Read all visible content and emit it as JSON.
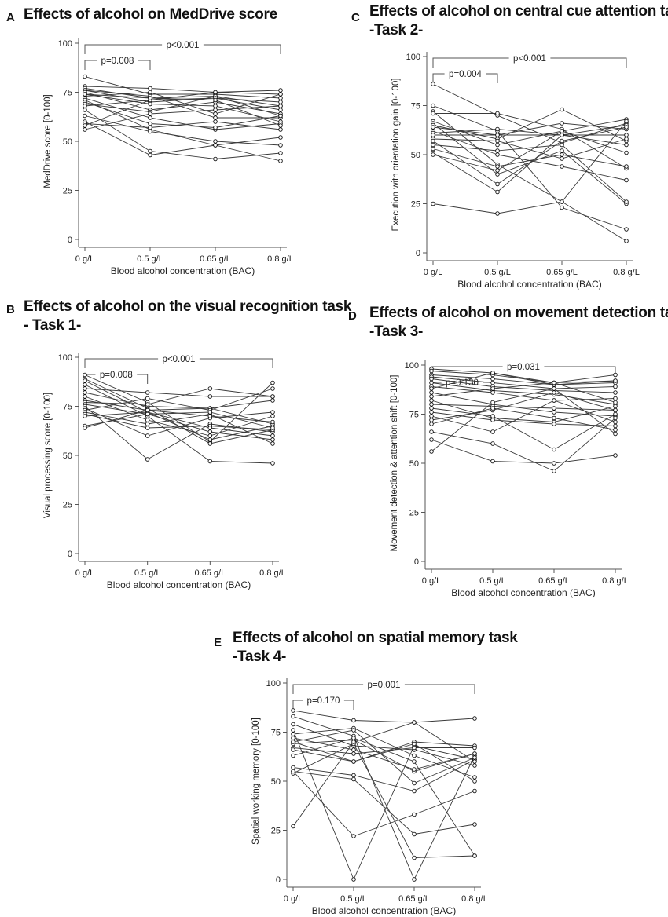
{
  "colors": {
    "line": "#3a3a3a",
    "axis": "#555555",
    "marker_fill": "#ffffff"
  },
  "chart_data": [
    {
      "type": "line",
      "id": "A",
      "panel_letter": "A",
      "title": "Effects of alcohol on MedDrive score",
      "subtitle": "",
      "xlabel": "Blood alcohol concentration (BAC)",
      "ylabel": "MedDrive score [0-100]",
      "categories": [
        "0 g/L",
        "0.5 g/L",
        "0.65 g/L",
        "0.8 g/L"
      ],
      "yticks": [
        0,
        25,
        50,
        75,
        100
      ],
      "ylim": [
        0,
        100
      ],
      "brackets": [
        {
          "from": 0,
          "to": 1,
          "label": "p=0.008"
        },
        {
          "from": 0,
          "to": 3,
          "label": "p<0.001"
        }
      ],
      "series": [
        [
          83,
          74,
          74,
          72
        ],
        [
          78,
          77,
          75,
          76
        ],
        [
          77,
          72,
          73,
          68
        ],
        [
          76,
          70,
          72,
          66
        ],
        [
          76,
          73,
          62,
          62
        ],
        [
          75,
          66,
          70,
          64
        ],
        [
          74,
          69,
          68,
          60
        ],
        [
          73,
          75,
          64,
          74
        ],
        [
          72,
          62,
          56,
          59
        ],
        [
          71,
          56,
          48,
          52
        ],
        [
          70,
          59,
          57,
          63
        ],
        [
          69,
          65,
          73,
          63
        ],
        [
          68,
          71,
          75,
          74
        ],
        [
          66,
          45,
          41,
          44
        ],
        [
          63,
          55,
          50,
          48
        ],
        [
          60,
          43,
          48,
          40
        ],
        [
          59,
          57,
          60,
          56
        ],
        [
          58,
          71,
          72,
          70
        ],
        [
          56,
          64,
          66,
          68
        ],
        [
          74,
          72,
          71,
          58
        ]
      ]
    },
    {
      "type": "line",
      "id": "C",
      "panel_letter": "C",
      "title": "Effects of alcohol on central cue attention task",
      "subtitle": "-Task 2-",
      "xlabel": "Blood alcohol concentration (BAC)",
      "ylabel": "Execution with orientation gain [0-100]",
      "categories": [
        "0 g/L",
        "0.5 g/L",
        "0.65 g/L",
        "0.8 g/L"
      ],
      "yticks": [
        0,
        25,
        50,
        75,
        100
      ],
      "ylim": [
        0,
        100
      ],
      "brackets": [
        {
          "from": 0,
          "to": 1,
          "label": "p=0.004"
        },
        {
          "from": 0,
          "to": 3,
          "label": "p<0.001"
        }
      ],
      "series": [
        [
          86,
          70,
          56,
          66
        ],
        [
          75,
          62,
          23,
          12
        ],
        [
          72,
          45,
          26,
          6
        ],
        [
          71,
          71,
          63,
          43
        ],
        [
          67,
          55,
          62,
          51
        ],
        [
          66,
          40,
          52,
          25
        ],
        [
          65,
          58,
          73,
          57
        ],
        [
          64,
          60,
          60,
          65
        ],
        [
          62,
          50,
          44,
          37
        ],
        [
          61,
          63,
          60,
          60
        ],
        [
          60,
          60,
          66,
          63
        ],
        [
          58,
          57,
          48,
          58
        ],
        [
          57,
          35,
          57,
          64
        ],
        [
          55,
          52,
          55,
          26
        ],
        [
          53,
          44,
          50,
          44
        ],
        [
          51,
          31,
          60,
          55
        ],
        [
          50,
          42,
          62,
          68
        ],
        [
          25,
          20,
          26,
          67
        ]
      ]
    },
    {
      "type": "line",
      "id": "B",
      "panel_letter": "B",
      "title": "Effects of alcohol on the visual recognition task",
      "subtitle": "- Task 1-",
      "xlabel": "Blood alcohol concentration (BAC)",
      "ylabel": "Visual processing score [0-100]",
      "categories": [
        "0 g/L",
        "0.5 g/L",
        "0.65 g/L",
        "0.8 g/L"
      ],
      "yticks": [
        0,
        25,
        50,
        75,
        100
      ],
      "ylim": [
        0,
        100
      ],
      "brackets": [
        {
          "from": 0,
          "to": 1,
          "label": "p=0.008"
        },
        {
          "from": 0,
          "to": 3,
          "label": "p<0.001"
        }
      ],
      "series": [
        [
          91,
          77,
          57,
          87
        ],
        [
          89,
          74,
          56,
          63
        ],
        [
          88,
          72,
          58,
          65
        ],
        [
          86,
          70,
          47,
          46
        ],
        [
          84,
          82,
          80,
          80
        ],
        [
          82,
          75,
          74,
          78
        ],
        [
          80,
          68,
          60,
          70
        ],
        [
          78,
          73,
          74,
          66
        ],
        [
          77,
          76,
          84,
          80
        ],
        [
          76,
          71,
          62,
          58
        ],
        [
          75,
          48,
          66,
          62
        ],
        [
          74,
          60,
          69,
          72
        ],
        [
          73,
          79,
          73,
          84
        ],
        [
          72,
          66,
          71,
          56
        ],
        [
          71,
          64,
          65,
          63
        ],
        [
          70,
          72,
          64,
          60
        ],
        [
          65,
          71,
          72,
          64
        ],
        [
          64,
          73,
          70,
          67
        ]
      ]
    },
    {
      "type": "line",
      "id": "D",
      "panel_letter": "D",
      "title": "Effects of alcohol on movement detection task",
      "subtitle": "-Task 3-",
      "xlabel": "Blood alcohol concentration (BAC)",
      "ylabel": "Movement detection & attention shift [0-100]",
      "categories": [
        "0 g/L",
        "0.5 g/L",
        "0.65 g/L",
        "0.8 g/L"
      ],
      "yticks": [
        0,
        25,
        50,
        75,
        100
      ],
      "ylim": [
        0,
        100
      ],
      "brackets": [
        {
          "from": 0,
          "to": 1,
          "label": "p=0.130"
        },
        {
          "from": 0,
          "to": 3,
          "label": "p=0.031"
        }
      ],
      "series": [
        [
          98,
          96,
          90,
          92
        ],
        [
          97,
          95,
          91,
          95
        ],
        [
          95,
          93,
          90,
          91
        ],
        [
          94,
          91,
          88,
          89
        ],
        [
          93,
          89,
          87,
          86
        ],
        [
          91,
          87,
          85,
          80
        ],
        [
          89,
          86,
          82,
          83
        ],
        [
          88,
          96,
          91,
          92
        ],
        [
          86,
          80,
          76,
          74
        ],
        [
          82,
          73,
          71,
          79
        ],
        [
          80,
          79,
          78,
          77
        ],
        [
          78,
          74,
          57,
          75
        ],
        [
          76,
          72,
          70,
          69
        ],
        [
          74,
          66,
          82,
          71
        ],
        [
          72,
          77,
          86,
          77
        ],
        [
          70,
          78,
          73,
          67
        ],
        [
          66,
          60,
          46,
          73
        ],
        [
          62,
          51,
          50,
          54
        ],
        [
          56,
          81,
          88,
          65
        ],
        [
          84,
          88,
          91,
          81
        ]
      ]
    },
    {
      "type": "line",
      "id": "E",
      "panel_letter": "E",
      "title": "Effects of alcohol on spatial memory task",
      "subtitle": "-Task 4-",
      "xlabel": "Blood alcohol concentration (BAC)",
      "ylabel": "Spatial working memory [0-100]",
      "categories": [
        "0 g/L",
        "0.5 g/L",
        "0.65 g/L",
        "0.8 g/L"
      ],
      "yticks": [
        0,
        25,
        50,
        75,
        100
      ],
      "ylim": [
        0,
        100
      ],
      "brackets": [
        {
          "from": 0,
          "to": 1,
          "label": "p=0.170"
        },
        {
          "from": 0,
          "to": 3,
          "label": "p=0.001"
        }
      ],
      "series": [
        [
          86,
          81,
          80,
          82
        ],
        [
          83,
          73,
          0,
          63
        ],
        [
          79,
          68,
          66,
          58
        ],
        [
          76,
          0,
          68,
          61
        ],
        [
          74,
          77,
          63,
          52
        ],
        [
          70,
          60,
          70,
          68
        ],
        [
          69,
          71,
          55,
          64
        ],
        [
          67,
          64,
          67,
          67
        ],
        [
          66,
          60,
          69,
          50
        ],
        [
          63,
          72,
          60,
          12
        ],
        [
          57,
          53,
          45,
          61
        ],
        [
          55,
          22,
          33,
          45
        ],
        [
          54,
          69,
          11,
          12
        ],
        [
          55,
          51,
          23,
          28
        ],
        [
          27,
          70,
          80,
          60
        ],
        [
          70,
          76,
          49,
          62
        ],
        [
          72,
          66,
          56,
          64
        ]
      ]
    }
  ]
}
